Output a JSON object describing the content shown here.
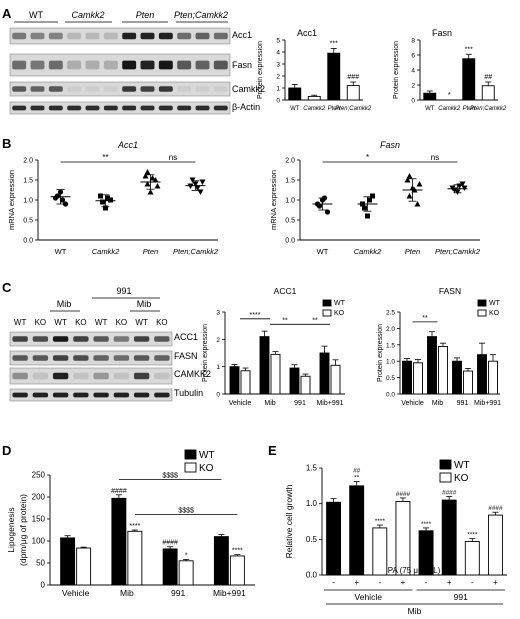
{
  "panelA": {
    "letter": "A",
    "blot_headers": [
      "WT",
      "Camkk2",
      "Pten",
      "Pten;Camkk2"
    ],
    "blot_rows": [
      "Acc1",
      "Fasn",
      "Camkk2",
      "β-Actin"
    ],
    "ylabel": "Protein expression",
    "charts": [
      {
        "title": "Acc1",
        "categories": [
          "WT",
          "Camkk2",
          "Pten",
          "Pten;Camkk2"
        ],
        "values": [
          1.0,
          0.3,
          3.9,
          1.2
        ],
        "errors": [
          0.3,
          0.1,
          0.4,
          0.3
        ],
        "ylim": [
          0,
          5
        ],
        "yticks": [
          "0",
          "1",
          "2",
          "3",
          "4",
          "5"
        ],
        "fills": [
          "#000",
          "#fff",
          "#000",
          "#fff"
        ],
        "sig": [
          "",
          "",
          "***",
          "###"
        ]
      },
      {
        "title": "Fasn",
        "categories": [
          "WT",
          "Camkk2",
          "Pten",
          "Pten;Camkk2"
        ],
        "values": [
          0.9,
          0.0,
          5.5,
          1.9
        ],
        "errors": [
          0.3,
          0.0,
          0.6,
          0.5
        ],
        "ylim": [
          0,
          8
        ],
        "yticks": [
          "0",
          "2",
          "4",
          "6",
          "8"
        ],
        "fills": [
          "#000",
          "#fff",
          "#000",
          "#fff"
        ],
        "sig": [
          "",
          "*",
          "***",
          "##"
        ]
      }
    ]
  },
  "panelB": {
    "letter": "B",
    "ylabel": "mRNA expression",
    "charts": [
      {
        "title": "Acc1",
        "categories": [
          "WT",
          "Camkk2",
          "Pten",
          "Pten;Camkk2"
        ],
        "ylim": [
          0,
          2
        ],
        "yticks": [
          "0.0",
          "0.5",
          "1.0",
          "1.5",
          "2.0"
        ],
        "points": [
          [
            1.05,
            1.2,
            0.9,
            1.1,
            1.0
          ],
          [
            1.1,
            0.8,
            1.0,
            0.95,
            1.05
          ],
          [
            1.6,
            1.2,
            1.5,
            1.4,
            1.55,
            1.35,
            1.7
          ],
          [
            1.35,
            1.4,
            1.2,
            1.5,
            1.3,
            1.45
          ]
        ],
        "means": [
          1.08,
          0.98,
          1.45,
          1.36
        ],
        "sds": [
          0.18,
          0.15,
          0.18,
          0.12
        ],
        "brackets": [
          {
            "from": 0,
            "to": 2,
            "label": "**"
          },
          {
            "from": 2,
            "to": 3,
            "label": "ns"
          }
        ]
      },
      {
        "title": "Fasn",
        "categories": [
          "WT",
          "Camkk2",
          "Pten",
          "Pten;Camkk2"
        ],
        "ylim": [
          0,
          2
        ],
        "yticks": [
          "0.0",
          "0.5",
          "1.0",
          "1.5",
          "2.0"
        ],
        "points": [
          [
            0.9,
            1.0,
            0.7,
            0.85,
            1.05
          ],
          [
            0.9,
            0.6,
            1.1,
            0.8,
            1.0
          ],
          [
            1.5,
            1.3,
            0.9,
            1.1,
            1.25,
            1.4,
            1.6
          ],
          [
            1.3,
            1.2,
            1.4,
            1.25,
            1.35,
            1.3
          ]
        ],
        "means": [
          0.9,
          0.9,
          1.25,
          1.28
        ],
        "sds": [
          0.15,
          0.18,
          0.28,
          0.1
        ],
        "brackets": [
          {
            "from": 0,
            "to": 2,
            "label": "*"
          },
          {
            "from": 2,
            "to": 3,
            "label": "ns"
          }
        ]
      }
    ]
  },
  "panelC": {
    "letter": "C",
    "group_labels": [
      "991",
      "Mib",
      "Mib"
    ],
    "lane_labels": [
      "WT",
      "KO",
      "WT",
      "KO",
      "WT",
      "KO",
      "WT",
      "KO"
    ],
    "blot_rows": [
      "ACC1",
      "FASN",
      "CAMKK2",
      "Tubulin"
    ],
    "ylabel": "Protein expression",
    "legend": [
      "WT",
      "KO"
    ],
    "charts": [
      {
        "title": "ACC1",
        "categories": [
          "Vehicle",
          "Mib",
          "991",
          "Mib+991"
        ],
        "ylim": [
          0,
          3
        ],
        "yticks": [
          "0",
          "1",
          "2",
          "3"
        ],
        "series": [
          {
            "name": "WT",
            "values": [
              1.0,
              2.1,
              0.95,
              1.5
            ],
            "errors": [
              0.08,
              0.2,
              0.12,
              0.25
            ]
          },
          {
            "name": "KO",
            "values": [
              0.85,
              1.45,
              0.65,
              1.05
            ],
            "errors": [
              0.1,
              0.1,
              0.08,
              0.2
            ]
          }
        ],
        "brackets": [
          {
            "from": 0,
            "to": 1,
            "label": "****",
            "level": 2.75
          },
          {
            "from": 1,
            "to": 2,
            "label": "**",
            "level": 2.55
          },
          {
            "from": 2,
            "to": 3,
            "label": "**",
            "level": 2.55
          }
        ]
      },
      {
        "title": "FASN",
        "categories": [
          "Vehicle",
          "Mib",
          "991",
          "Mib+991"
        ],
        "ylim": [
          0,
          2.5
        ],
        "yticks": [
          "0.0",
          "0.5",
          "1.0",
          "1.5",
          "2.0",
          "2.5"
        ],
        "series": [
          {
            "name": "WT",
            "values": [
              1.0,
              1.75,
              1.0,
              1.2
            ],
            "errors": [
              0.08,
              0.15,
              0.1,
              0.35
            ]
          },
          {
            "name": "KO",
            "values": [
              0.95,
              1.45,
              0.7,
              1.0
            ],
            "errors": [
              0.1,
              0.1,
              0.08,
              0.2
            ]
          }
        ],
        "brackets": [
          {
            "from": 0,
            "to": 1,
            "label": "**",
            "level": 2.2
          }
        ]
      }
    ]
  },
  "panelD": {
    "letter": "D",
    "ylabel": "Lipogenesis",
    "ylabel2": "(dpm/μg of protein)",
    "legend": [
      "WT",
      "KO"
    ],
    "categories": [
      "Vehicle",
      "Mib",
      "991",
      "Mib+991"
    ],
    "ylim": [
      0,
      250
    ],
    "yticks": [
      "0",
      "50",
      "100",
      "150",
      "200",
      "250"
    ],
    "series": [
      {
        "name": "WT",
        "values": [
          107,
          197,
          82,
          110
        ],
        "errors": [
          5,
          8,
          5,
          5
        ],
        "sig": [
          "",
          "####",
          "####",
          ""
        ]
      },
      {
        "name": "KO",
        "values": [
          84,
          122,
          55,
          66
        ],
        "errors": [
          2,
          3,
          3,
          3
        ],
        "sig": [
          "",
          "****",
          "*",
          "****"
        ]
      }
    ],
    "brackets": [
      {
        "from": 1,
        "to": 3,
        "label": "$$$$",
        "series": 0,
        "level": 240
      },
      {
        "from": 1,
        "to": 3,
        "label": "$$$$",
        "series": 1,
        "level": 160
      }
    ]
  },
  "panelE": {
    "letter": "E",
    "ylabel": "Relative cell growth",
    "legend": [
      "WT",
      "KO"
    ],
    "ylim": [
      0,
      1.5
    ],
    "yticks": [
      "0.0",
      "0.5",
      "1.0",
      "1.5"
    ],
    "pa_label": "PA (75 μmol/L)",
    "pa_signs": [
      "-",
      "+",
      "-",
      "+",
      "-",
      "+",
      "-",
      "+"
    ],
    "group_labels": [
      "Vehicle",
      "991"
    ],
    "bottom_label": "Mib",
    "bars": [
      {
        "v": 1.02,
        "e": 0.05,
        "fill": "#000",
        "sig": ""
      },
      {
        "v": 1.25,
        "e": 0.06,
        "fill": "#000",
        "sig": "##|**"
      },
      {
        "v": 0.66,
        "e": 0.04,
        "fill": "#fff",
        "sig": "****"
      },
      {
        "v": 1.03,
        "e": 0.05,
        "fill": "#fff",
        "sig": "####"
      },
      {
        "v": 0.62,
        "e": 0.04,
        "fill": "#000",
        "sig": "****"
      },
      {
        "v": 1.05,
        "e": 0.05,
        "fill": "#000",
        "sig": "####"
      },
      {
        "v": 0.47,
        "e": 0.04,
        "fill": "#fff",
        "sig": "****"
      },
      {
        "v": 0.84,
        "e": 0.04,
        "fill": "#fff",
        "sig": "####"
      }
    ]
  }
}
